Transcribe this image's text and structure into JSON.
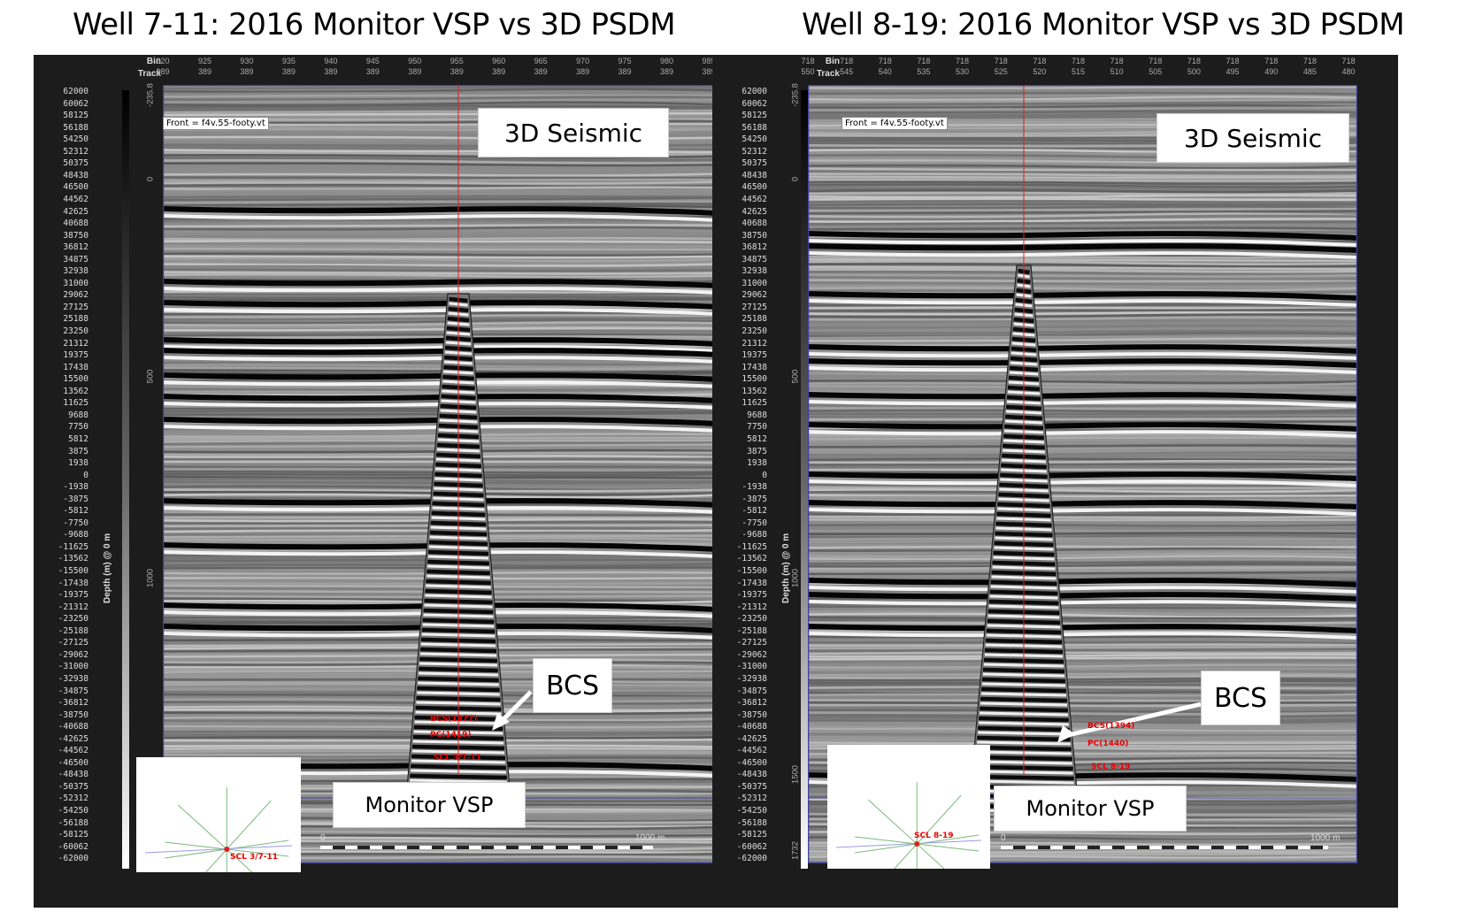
{
  "panels": [
    {
      "title": "Well 7-11: 2016 Monitor VSP vs 3D PSDM",
      "header": {
        "bin_label": "Bin",
        "track_label": "Track",
        "bin_ticks": [
          "920",
          "925",
          "930",
          "935",
          "940",
          "945",
          "950",
          "955",
          "960",
          "965",
          "970",
          "975",
          "980",
          "985"
        ],
        "track_ticks": [
          "389",
          "389",
          "389",
          "389",
          "389",
          "389",
          "389",
          "389",
          "389",
          "389",
          "389",
          "389",
          "389",
          "389"
        ]
      },
      "front_label": "Front = f4v.55-footy.vt",
      "seismic_label": "3D Seismic",
      "vsp_label": "Monitor VSP",
      "bcs_label": "BCS",
      "marker_bcs": "BCS(1377)",
      "marker_pc": "PC(1419)",
      "marker_scl": "SCL 3/7-11",
      "map_label": "SCL 3/7-11",
      "scale_start": "0",
      "scale_end": "1000 m",
      "depth_title": "Depth (m) @ 0 m",
      "depth_ticks": [
        "-235.8",
        "0",
        "500",
        "1000",
        "1500",
        "1732"
      ]
    },
    {
      "title": "Well 8-19: 2016 Monitor VSP vs 3D PSDM",
      "header": {
        "bin_label": "Bin",
        "track_label": "Track",
        "bin_ticks": [
          "718",
          "718",
          "718",
          "718",
          "718",
          "718",
          "718",
          "718",
          "718",
          "718",
          "718",
          "718",
          "718",
          "718",
          "718"
        ],
        "track_ticks": [
          "550",
          "545",
          "540",
          "535",
          "530",
          "525",
          "520",
          "515",
          "510",
          "505",
          "500",
          "495",
          "490",
          "485",
          "480"
        ]
      },
      "front_label": "Front = f4v.55-footy.vt",
      "seismic_label": "3D Seismic",
      "vsp_label": "Monitor VSP",
      "bcs_label": "BCS",
      "marker_bcs": "BCS(1394)",
      "marker_pc": "PC(1440)",
      "marker_scl": "SCL 8-19",
      "map_label": "SCL 8-19",
      "scale_start": "0",
      "scale_end": "1000 m",
      "depth_title": "Depth (m) @ 0 m",
      "depth_ticks": [
        "-235.8",
        "0",
        "500",
        "1000",
        "1500",
        "1732"
      ]
    }
  ],
  "colorbar_labels": [
    "62000",
    "60062",
    "58125",
    "56188",
    "54250",
    "52312",
    "50375",
    "48438",
    "46500",
    "44562",
    "42625",
    "40688",
    "38750",
    "36812",
    "34875",
    "32938",
    "31000",
    "29062",
    "27125",
    "25188",
    "23250",
    "21312",
    "19375",
    "17438",
    "15500",
    "13562",
    "11625",
    "9688",
    "7750",
    "5812",
    "3875",
    "1938",
    "0",
    "-1938",
    "-3875",
    "-5812",
    "-7750",
    "-9688",
    "-11625",
    "-13562",
    "-15500",
    "-17438",
    "-19375",
    "-21312",
    "-23250",
    "-25188",
    "-27125",
    "-29062",
    "-31000",
    "-32938",
    "-34875",
    "-36812",
    "-38750",
    "-40688",
    "-42625",
    "-44562",
    "-46500",
    "-48438",
    "-50375",
    "-52312",
    "-54250",
    "-56188",
    "-58125",
    "-60062",
    "-62000"
  ]
}
